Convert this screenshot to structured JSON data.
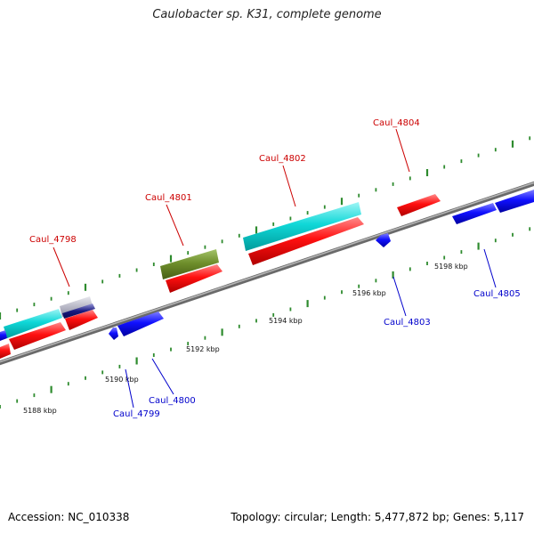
{
  "header": {
    "title": "Caulobacter sp. K31, complete genome"
  },
  "footer": {
    "accession": "Accession: NC_010338",
    "summary": "Topology: circular; Length: 5,477,872 bp; Genes: 5,117"
  },
  "scale": {
    "tick_labels": [
      "5188 kbp",
      "5190 kbp",
      "5192 kbp",
      "5194 kbp",
      "5196 kbp",
      "5198 kbp"
    ]
  },
  "genes": {
    "caul_4798": "Caul_4798",
    "caul_4799": "Caul_4799",
    "caul_4800": "Caul_4800",
    "caul_4801": "Caul_4801",
    "caul_4802": "Caul_4802",
    "caul_4803": "Caul_4803",
    "caul_4804": "Caul_4804",
    "caul_4805": "Caul_4805"
  },
  "colors": {
    "forward_gene": "#ff0000",
    "reverse_gene": "#0000ff",
    "forward_label": "#cc0000",
    "reverse_label": "#0000cc",
    "rna_cyan": "#00cccc",
    "rna_olive": "#6b8e23",
    "backbone": "#8c8c8c",
    "tick": "#2e8b2e"
  }
}
